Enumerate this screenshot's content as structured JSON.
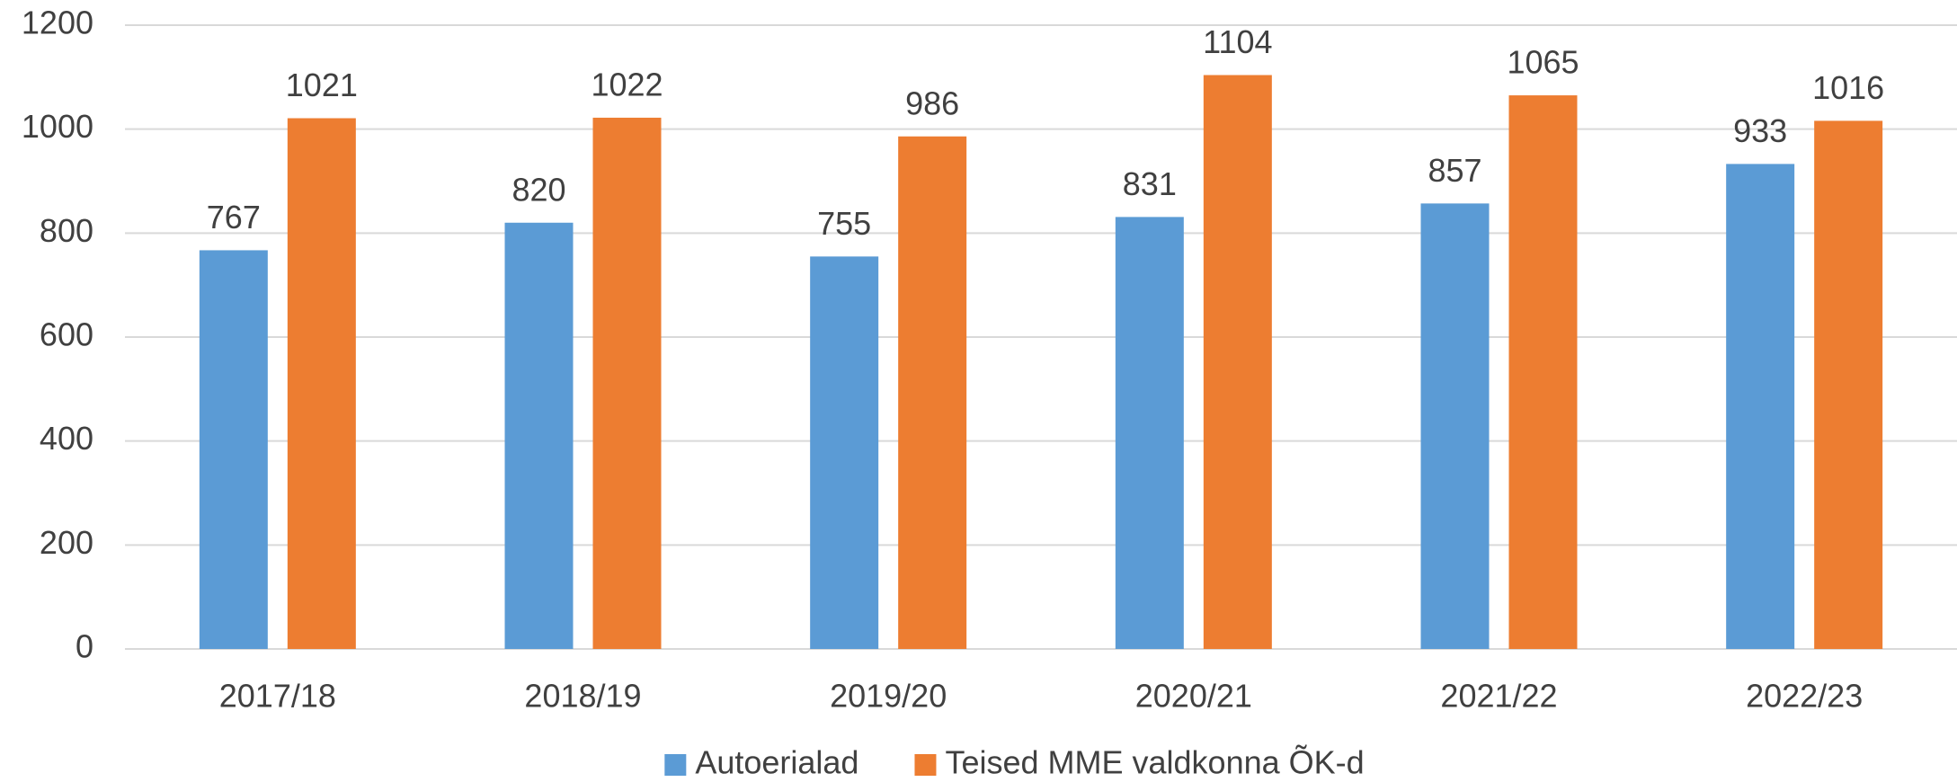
{
  "chart_data": {
    "type": "bar",
    "categories": [
      "2017/18",
      "2018/19",
      "2019/20",
      "2020/21",
      "2021/22",
      "2022/23"
    ],
    "series": [
      {
        "name": "Autoerialad",
        "color": "#5b9bd5",
        "values": [
          767,
          820,
          755,
          831,
          857,
          933
        ]
      },
      {
        "name": "Teised MME valdkonna ÕK-d",
        "color": "#ed7d31",
        "values": [
          1021,
          1022,
          986,
          1104,
          1065,
          1016
        ]
      }
    ],
    "ylim": [
      0,
      1200
    ],
    "yticks": [
      0,
      200,
      400,
      600,
      800,
      1000,
      1200
    ],
    "grid": true,
    "legend": "bottom"
  }
}
